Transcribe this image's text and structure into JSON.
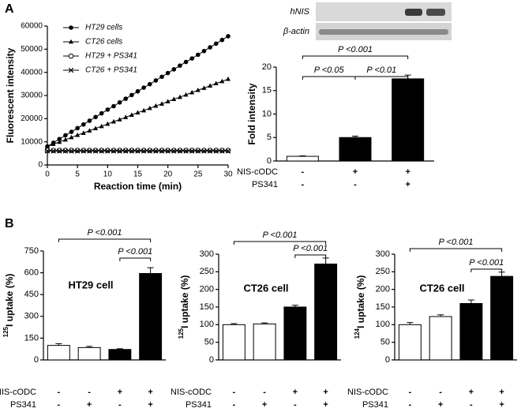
{
  "panels": [
    "A",
    "B"
  ],
  "blot": {
    "bands": [
      "hNIS",
      "β-actin"
    ]
  },
  "chart_data": [
    {
      "type": "line",
      "x_label": "Reaction time (min)",
      "y_label": "Fluorescent intensity",
      "xlim": [
        0,
        30
      ],
      "xticks": [
        0,
        5,
        10,
        15,
        20,
        25,
        30
      ],
      "ylim": [
        0,
        60000
      ],
      "yticks": [
        0,
        10000,
        20000,
        30000,
        40000,
        50000,
        60000
      ],
      "legend": "upper left",
      "x": [
        0,
        1,
        2,
        3,
        4,
        5,
        6,
        7,
        8,
        9,
        10,
        11,
        12,
        13,
        14,
        15,
        16,
        17,
        18,
        19,
        20,
        21,
        22,
        23,
        24,
        25,
        26,
        27,
        28,
        29,
        30
      ],
      "series": [
        {
          "name": "HT29 cells",
          "color": "#000000",
          "marker": "filled-circle",
          "values": [
            8000,
            9600,
            11200,
            12800,
            14300,
            15900,
            17500,
            19100,
            20700,
            22300,
            23900,
            25400,
            27000,
            28600,
            30200,
            31800,
            33400,
            34900,
            36500,
            38100,
            39700,
            41300,
            42900,
            44500,
            46000,
            47600,
            49200,
            50800,
            52400,
            54000,
            55600
          ]
        },
        {
          "name": "CT26 cells",
          "color": "#000000",
          "marker": "triangle",
          "values": [
            8000,
            9000,
            9900,
            10900,
            11900,
            12900,
            13800,
            14800,
            15800,
            16700,
            17700,
            18700,
            19600,
            20600,
            21600,
            22600,
            23500,
            24500,
            25500,
            26400,
            27400,
            28400,
            29300,
            30300,
            31300,
            32300,
            33200,
            34200,
            35200,
            36100,
            37100
          ]
        },
        {
          "name": "HT29 + PS341",
          "color": "#000000",
          "marker": "open-circle",
          "values": [
            6300,
            6300,
            6300,
            6300,
            6300,
            6300,
            6300,
            6300,
            6300,
            6300,
            6300,
            6300,
            6300,
            6300,
            6300,
            6300,
            6300,
            6300,
            6300,
            6300,
            6300,
            6300,
            6300,
            6300,
            6300,
            6300,
            6300,
            6300,
            6300,
            6300,
            6300
          ]
        },
        {
          "name": "CT26 + PS341",
          "color": "#000000",
          "marker": "x",
          "values": [
            6000,
            6000,
            6000,
            6000,
            6000,
            6000,
            6000,
            6000,
            6000,
            6000,
            6000,
            6000,
            6000,
            6000,
            6000,
            6000,
            6000,
            6000,
            6000,
            6000,
            6000,
            6000,
            6000,
            6000,
            6000,
            6000,
            6000,
            6000,
            6000,
            6000,
            6000
          ]
        }
      ]
    },
    {
      "type": "bar",
      "y_label": "Fold intensity",
      "ylim": [
        0,
        20
      ],
      "yticks": [
        0,
        5,
        10,
        15,
        20
      ],
      "values": [
        1,
        5,
        17.5
      ],
      "errors": [
        0.1,
        0.3,
        0.8
      ],
      "colors": [
        "#ffffff",
        "#000000",
        "#000000"
      ],
      "conditions": [
        {
          "name": "NIS-cODC",
          "levels": [
            "-",
            "+",
            "+"
          ]
        },
        {
          "name": "PS341",
          "levels": [
            "-",
            "-",
            "+"
          ]
        }
      ],
      "comparisons": [
        "P <0.001",
        "P <0.05",
        "P <0.01"
      ]
    },
    {
      "type": "bar",
      "y_label_isotope": "125",
      "y_label": "I uptake (%)",
      "annotation": "HT29 cell",
      "ylim": [
        0,
        750
      ],
      "yticks": [
        0,
        150,
        300,
        450,
        600,
        750
      ],
      "values": [
        100,
        85,
        72,
        595
      ],
      "errors": [
        12,
        8,
        5,
        40
      ],
      "colors": [
        "#ffffff",
        "#ffffff",
        "#000000",
        "#000000"
      ],
      "conditions": [
        {
          "name": "NIS-cODC",
          "levels": [
            "-",
            "-",
            "+",
            "+"
          ]
        },
        {
          "name": "PS341",
          "levels": [
            "-",
            "+",
            "-",
            "+"
          ]
        }
      ],
      "comparisons": [
        "P <0.001",
        "P <0.001"
      ]
    },
    {
      "type": "bar",
      "y_label_isotope": "125",
      "y_label": "I uptake (%)",
      "annotation": "CT26 cell",
      "ylim": [
        0,
        300
      ],
      "yticks": [
        0,
        50,
        100,
        150,
        200,
        250,
        300
      ],
      "values": [
        100,
        102,
        150,
        272
      ],
      "errors": [
        3,
        3,
        5,
        17
      ],
      "colors": [
        "#ffffff",
        "#ffffff",
        "#000000",
        "#000000"
      ],
      "conditions": [
        {
          "name": "NIS-cODC",
          "levels": [
            "-",
            "-",
            "+",
            "+"
          ]
        },
        {
          "name": "PS341",
          "levels": [
            "-",
            "+",
            "-",
            "+"
          ]
        }
      ],
      "comparisons": [
        "P <0.001",
        "P <0.001"
      ]
    },
    {
      "type": "bar",
      "y_label_isotope": "124",
      "y_label": "I uptake (%)",
      "annotation": "CT26 cell",
      "ylim": [
        0,
        300
      ],
      "yticks": [
        0,
        50,
        100,
        150,
        200,
        250,
        300
      ],
      "values": [
        100,
        123,
        160,
        237
      ],
      "errors": [
        6,
        5,
        10,
        12
      ],
      "colors": [
        "#ffffff",
        "#ffffff",
        "#000000",
        "#000000"
      ],
      "conditions": [
        {
          "name": "NIS-cODC",
          "levels": [
            "-",
            "-",
            "+",
            "+"
          ]
        },
        {
          "name": "PS341",
          "levels": [
            "-",
            "+",
            "-",
            "+"
          ]
        }
      ],
      "comparisons": [
        "P <0.001",
        "P <0.001"
      ]
    }
  ]
}
